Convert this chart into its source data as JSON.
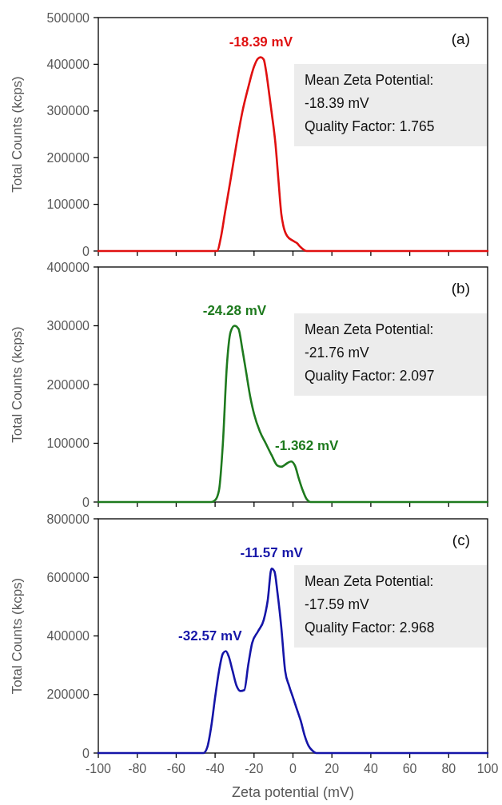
{
  "chart_data": [
    {
      "type": "line",
      "ylabel": "Total Counts (kcps)",
      "xlim": [
        -100,
        100
      ],
      "xticks": [
        -100,
        -80,
        -60,
        -40,
        -20,
        0,
        20,
        40,
        60,
        80,
        100
      ],
      "ylim": [
        0,
        500000
      ],
      "yticks": [
        0,
        100000,
        200000,
        300000,
        400000,
        500000
      ],
      "tick_labels": "y",
      "grid": false,
      "marker": "none",
      "series": [
        {
          "color": "#e01010",
          "x": [
            -100,
            -39,
            -37,
            -35,
            -32,
            -29,
            -26,
            -23,
            -20,
            -18,
            -16.5,
            -15,
            -14,
            -12,
            -11,
            -9,
            -7.5,
            -6,
            -5,
            -3,
            0,
            2,
            4,
            7,
            100
          ],
          "values": [
            0,
            0,
            30000,
            80000,
            154000,
            230000,
            298000,
            350000,
            395000,
            412000,
            415000,
            410000,
            390000,
            330000,
            298000,
            230000,
            154000,
            80000,
            55000,
            32000,
            22000,
            17000,
            8000,
            0,
            0
          ]
        }
      ],
      "annotations": [
        {
          "text": "-18.39 mV",
          "x": -16.5,
          "y": 415000
        },
        "(a)",
        "Mean Zeta Potential:",
        "-18.39 mV",
        "Quality Factor: 1.765"
      ]
    },
    {
      "type": "line",
      "ylabel": "Total Counts (kcps)",
      "xlim": [
        -100,
        100
      ],
      "xticks": [
        -100,
        -80,
        -60,
        -40,
        -20,
        0,
        20,
        40,
        60,
        80,
        100
      ],
      "ylim": [
        0,
        400000
      ],
      "yticks": [
        0,
        100000,
        200000,
        300000,
        400000
      ],
      "tick_labels": "y",
      "grid": false,
      "marker": "none",
      "series": [
        {
          "color": "#1e7a1e",
          "x": [
            -100,
            -42,
            -40,
            -38,
            -36,
            -34,
            -32,
            -30,
            -28,
            -26,
            -24,
            -22,
            -20,
            -17,
            -14,
            -11,
            -8,
            -6,
            -3,
            -1,
            1,
            3,
            5,
            7,
            9,
            100
          ],
          "values": [
            0,
            0,
            3000,
            20000,
            100000,
            230000,
            290000,
            300000,
            295000,
            260000,
            220000,
            180000,
            150000,
            120000,
            100000,
            80000,
            62000,
            60000,
            66000,
            69000,
            62000,
            40000,
            20000,
            5000,
            0,
            0
          ]
        }
      ],
      "annotations": [
        {
          "text": "-24.28 mV",
          "x": -30,
          "y": 300000
        },
        {
          "text": "-1.362 mV",
          "x": -1,
          "y": 69000
        },
        "(b)",
        "Mean Zeta Potential:",
        "-21.76 mV",
        "Quality Factor: 2.097"
      ]
    },
    {
      "type": "line",
      "xlabel": "Zeta potential (mV)",
      "ylabel": "Total Counts (kcps)",
      "xlim": [
        -100,
        100
      ],
      "xticks": [
        -100,
        -80,
        -60,
        -40,
        -20,
        0,
        20,
        40,
        60,
        80,
        100
      ],
      "ylim": [
        0,
        800000
      ],
      "yticks": [
        0,
        200000,
        400000,
        600000,
        800000
      ],
      "grid": false,
      "marker": "none",
      "series": [
        {
          "color": "#1515a8",
          "x": [
            -100,
            -46,
            -44,
            -42,
            -40,
            -38,
            -36,
            -34.5,
            -33,
            -31,
            -29,
            -27,
            -25,
            -23,
            -21,
            -18,
            -15,
            -13,
            -11,
            -9.5,
            -8,
            -6,
            -4,
            -2,
            0,
            2,
            4,
            6,
            8,
            10,
            12,
            100
          ],
          "values": [
            0,
            0,
            20000,
            90000,
            190000,
            280000,
            340000,
            348000,
            330000,
            280000,
            230000,
            212000,
            215000,
            300000,
            375000,
            415000,
            455000,
            520000,
            630000,
            620000,
            550000,
            430000,
            280000,
            230000,
            190000,
            150000,
            110000,
            60000,
            25000,
            8000,
            0,
            0
          ]
        }
      ],
      "annotations": [
        {
          "text": "-11.57 mV",
          "x": -11,
          "y": 630000
        },
        {
          "text": "-32.57 mV",
          "x": -34.5,
          "y": 348000
        },
        "(c)",
        "Mean Zeta Potential:",
        "-17.59 mV",
        "Quality Factor: 2.968"
      ]
    }
  ]
}
